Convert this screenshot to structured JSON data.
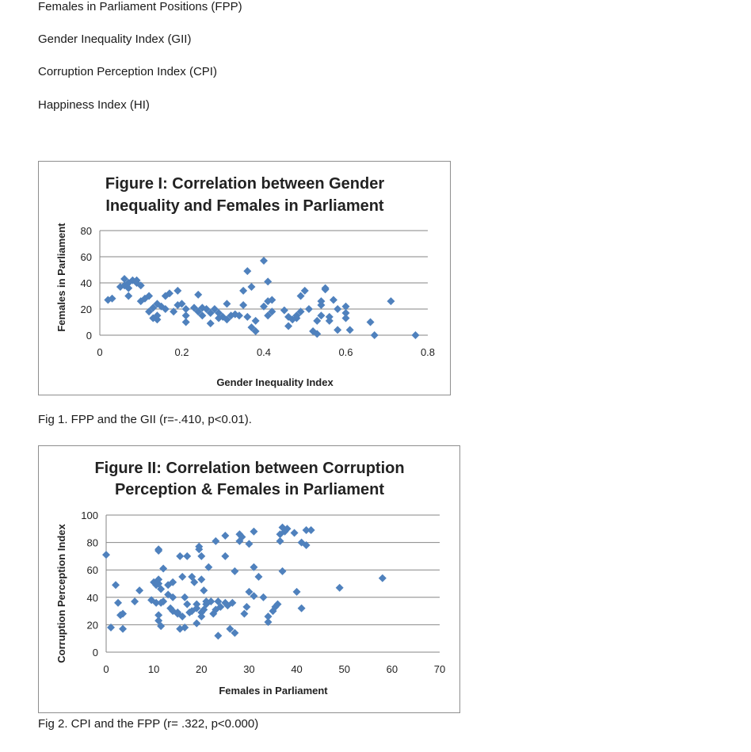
{
  "definitions": [
    "Females in Parliament Positions (FPP)",
    "Gender Inequality Index (GII)",
    "Corruption Perception Index (CPI)",
    "Happiness Index (HI)"
  ],
  "captions": {
    "fig1": "Fig 1. FPP and the GII (r=-.410, p<0.01).",
    "fig2": "Fig 2. CPI and the FPP (r= .322, p<0.000)"
  },
  "colors": {
    "marker": "#4F81BD",
    "grid": "#868686",
    "frame": "#8e8e8e"
  },
  "chart_data": [
    {
      "type": "scatter",
      "title_lines": [
        "Figure I: Correlation between Gender",
        "Inequality and Females in Parliament"
      ],
      "xlabel": "Gender Inequality Index",
      "ylabel": "Females in Parliament",
      "xlim": [
        0,
        0.8
      ],
      "ylim": [
        0,
        80
      ],
      "xticks": [
        0,
        0.2,
        0.4,
        0.6,
        0.8
      ],
      "xtick_labels": [
        "0",
        "0.2",
        "0.4",
        "0.6",
        "0.8"
      ],
      "yticks": [
        0,
        20,
        40,
        60,
        80
      ],
      "ytick_labels": [
        "0",
        "20",
        "40",
        "60",
        "80"
      ],
      "grid": true,
      "points": [
        [
          0.02,
          27
        ],
        [
          0.03,
          28
        ],
        [
          0.05,
          37
        ],
        [
          0.06,
          38
        ],
        [
          0.06,
          43
        ],
        [
          0.07,
          40
        ],
        [
          0.07,
          36
        ],
        [
          0.08,
          42
        ],
        [
          0.07,
          30
        ],
        [
          0.09,
          42
        ],
        [
          0.09,
          40
        ],
        [
          0.1,
          38
        ],
        [
          0.1,
          26
        ],
        [
          0.11,
          28
        ],
        [
          0.12,
          30
        ],
        [
          0.12,
          18
        ],
        [
          0.13,
          21
        ],
        [
          0.13,
          13
        ],
        [
          0.14,
          12
        ],
        [
          0.14,
          15
        ],
        [
          0.14,
          24
        ],
        [
          0.15,
          22
        ],
        [
          0.16,
          20
        ],
        [
          0.16,
          30
        ],
        [
          0.17,
          32
        ],
        [
          0.18,
          18
        ],
        [
          0.19,
          23
        ],
        [
          0.19,
          34
        ],
        [
          0.2,
          24
        ],
        [
          0.21,
          20
        ],
        [
          0.21,
          15
        ],
        [
          0.21,
          10
        ],
        [
          0.23,
          21
        ],
        [
          0.24,
          18
        ],
        [
          0.24,
          31
        ],
        [
          0.25,
          15
        ],
        [
          0.25,
          21
        ],
        [
          0.26,
          20
        ],
        [
          0.27,
          9
        ],
        [
          0.27,
          17
        ],
        [
          0.28,
          20
        ],
        [
          0.29,
          13
        ],
        [
          0.29,
          17
        ],
        [
          0.3,
          14
        ],
        [
          0.31,
          24
        ],
        [
          0.31,
          12
        ],
        [
          0.32,
          15
        ],
        [
          0.33,
          16
        ],
        [
          0.34,
          15
        ],
        [
          0.35,
          34
        ],
        [
          0.35,
          23
        ],
        [
          0.36,
          49
        ],
        [
          0.36,
          14
        ],
        [
          0.37,
          37
        ],
        [
          0.37,
          6
        ],
        [
          0.38,
          11
        ],
        [
          0.38,
          3
        ],
        [
          0.4,
          57
        ],
        [
          0.4,
          22
        ],
        [
          0.41,
          41
        ],
        [
          0.41,
          15
        ],
        [
          0.41,
          26
        ],
        [
          0.42,
          18
        ],
        [
          0.42,
          27
        ],
        [
          0.45,
          19
        ],
        [
          0.46,
          7
        ],
        [
          0.46,
          14
        ],
        [
          0.47,
          12
        ],
        [
          0.48,
          13
        ],
        [
          0.48,
          15
        ],
        [
          0.49,
          18
        ],
        [
          0.49,
          30
        ],
        [
          0.5,
          34
        ],
        [
          0.51,
          20
        ],
        [
          0.52,
          3
        ],
        [
          0.53,
          1
        ],
        [
          0.53,
          11
        ],
        [
          0.54,
          15
        ],
        [
          0.54,
          23
        ],
        [
          0.54,
          26
        ],
        [
          0.55,
          35
        ],
        [
          0.55,
          36
        ],
        [
          0.56,
          11
        ],
        [
          0.56,
          14
        ],
        [
          0.57,
          27
        ],
        [
          0.58,
          4
        ],
        [
          0.58,
          20
        ],
        [
          0.6,
          22
        ],
        [
          0.6,
          17
        ],
        [
          0.6,
          13
        ],
        [
          0.61,
          4
        ],
        [
          0.66,
          10
        ],
        [
          0.67,
          0
        ],
        [
          0.71,
          26
        ],
        [
          0.77,
          0
        ]
      ]
    },
    {
      "type": "scatter",
      "title_lines": [
        "Figure II: Correlation between Corruption",
        "Perception  & Females in Parliament"
      ],
      "xlabel": "Females in Parliament",
      "ylabel": "Corruption Perception Index",
      "xlim": [
        0,
        70
      ],
      "ylim": [
        0,
        100
      ],
      "xticks": [
        0,
        10,
        20,
        30,
        40,
        50,
        60,
        70
      ],
      "xtick_labels": [
        "0",
        "10",
        "20",
        "30",
        "40",
        "50",
        "60",
        "70"
      ],
      "yticks": [
        0,
        20,
        40,
        60,
        80,
        100
      ],
      "ytick_labels": [
        "0",
        "20",
        "40",
        "60",
        "80",
        "100"
      ],
      "grid": true,
      "points": [
        [
          0,
          71
        ],
        [
          1,
          18
        ],
        [
          2,
          49
        ],
        [
          2.5,
          36
        ],
        [
          3,
          27
        ],
        [
          3.5,
          28
        ],
        [
          3.5,
          17
        ],
        [
          6,
          37
        ],
        [
          7,
          45
        ],
        [
          9.5,
          38
        ],
        [
          10,
          51
        ],
        [
          10.5,
          49
        ],
        [
          10.5,
          36
        ],
        [
          11,
          75
        ],
        [
          11,
          74
        ],
        [
          11,
          23
        ],
        [
          11,
          27
        ],
        [
          11,
          50
        ],
        [
          11,
          53
        ],
        [
          11.5,
          46
        ],
        [
          11.5,
          36
        ],
        [
          11.5,
          19
        ],
        [
          12,
          61
        ],
        [
          12,
          37
        ],
        [
          13,
          49
        ],
        [
          13,
          42
        ],
        [
          13.5,
          32
        ],
        [
          14,
          30
        ],
        [
          14,
          51
        ],
        [
          14,
          40
        ],
        [
          15,
          29
        ],
        [
          15,
          28
        ],
        [
          15.5,
          70
        ],
        [
          15.5,
          17
        ],
        [
          16,
          26
        ],
        [
          16,
          55
        ],
        [
          16.5,
          40
        ],
        [
          16.5,
          18
        ],
        [
          17,
          70
        ],
        [
          17,
          35
        ],
        [
          17.5,
          29
        ],
        [
          18,
          55
        ],
        [
          18,
          30
        ],
        [
          18.5,
          51
        ],
        [
          19,
          21
        ],
        [
          19,
          32
        ],
        [
          19,
          35
        ],
        [
          19.5,
          77
        ],
        [
          19.5,
          75
        ],
        [
          20,
          70
        ],
        [
          20,
          53
        ],
        [
          20,
          29
        ],
        [
          20,
          26
        ],
        [
          20.5,
          31
        ],
        [
          20.5,
          45
        ],
        [
          21,
          37
        ],
        [
          21,
          35
        ],
        [
          21.5,
          62
        ],
        [
          22,
          37
        ],
        [
          22.5,
          28
        ],
        [
          23,
          81
        ],
        [
          23,
          31
        ],
        [
          23.5,
          12
        ],
        [
          23.5,
          37
        ],
        [
          24,
          33
        ],
        [
          25,
          85
        ],
        [
          25,
          70
        ],
        [
          25,
          36
        ],
        [
          25.5,
          34
        ],
        [
          26,
          17
        ],
        [
          26.5,
          36
        ],
        [
          27,
          14
        ],
        [
          27,
          59
        ],
        [
          28,
          81
        ],
        [
          28,
          86
        ],
        [
          28.5,
          84
        ],
        [
          29,
          28
        ],
        [
          29.5,
          33
        ],
        [
          30,
          79
        ],
        [
          30,
          44
        ],
        [
          31,
          62
        ],
        [
          31,
          88
        ],
        [
          31,
          41
        ],
        [
          32,
          55
        ],
        [
          33,
          40
        ],
        [
          34,
          26
        ],
        [
          34,
          22
        ],
        [
          35,
          30
        ],
        [
          35.5,
          33
        ],
        [
          36,
          35
        ],
        [
          36.5,
          81
        ],
        [
          36.5,
          86
        ],
        [
          37,
          91
        ],
        [
          37,
          59
        ],
        [
          37.5,
          88
        ],
        [
          38,
          90
        ],
        [
          39.5,
          87
        ],
        [
          40,
          44
        ],
        [
          41,
          80
        ],
        [
          41,
          32
        ],
        [
          42,
          78
        ],
        [
          42,
          89
        ],
        [
          43,
          89
        ],
        [
          49,
          47
        ],
        [
          58,
          54
        ]
      ]
    }
  ]
}
